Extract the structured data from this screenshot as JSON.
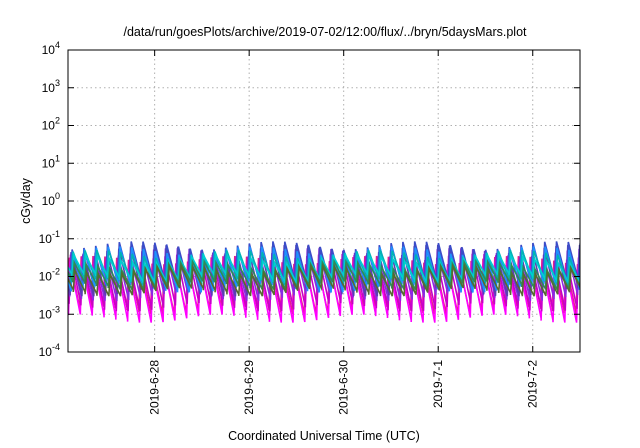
{
  "chart_data": {
    "type": "line",
    "title": "/data/run/goesPlots/archive/2019-07-02/12:00/flux/../bryn/5daysMars.plot",
    "xlabel": "Coordinated Universal Time (UTC)",
    "ylabel": "cGy/day",
    "x_range": [
      "2019-06-27T02:00:00",
      "2019-07-02T12:00:00"
    ],
    "x_ticks": [
      {
        "label": "2019-6-28",
        "t": "2019-06-28T00:00:00"
      },
      {
        "label": "2019-6-29",
        "t": "2019-06-29T00:00:00"
      },
      {
        "label": "2019-6-30",
        "t": "2019-06-30T00:00:00"
      },
      {
        "label": "2019-7-1",
        "t": "2019-07-01T00:00:00"
      },
      {
        "label": "2019-7-2",
        "t": "2019-07-02T00:00:00"
      }
    ],
    "y_scale": "log",
    "ylim": [
      0.0001,
      10000
    ],
    "y_ticks": [
      {
        "base": "10",
        "exp": "-4",
        "value": 0.0001
      },
      {
        "base": "10",
        "exp": "-3",
        "value": 0.001
      },
      {
        "base": "10",
        "exp": "-2",
        "value": 0.01
      },
      {
        "base": "10",
        "exp": "-1",
        "value": 0.1
      },
      {
        "base": "10",
        "exp": "0",
        "value": 1
      },
      {
        "base": "10",
        "exp": "1",
        "value": 10
      },
      {
        "base": "10",
        "exp": "2",
        "value": 100
      },
      {
        "base": "10",
        "exp": "3",
        "value": 1000
      },
      {
        "base": "10",
        "exp": "4",
        "value": 10000
      }
    ],
    "grid": true,
    "cycle_hours": 3,
    "series": [
      {
        "color": "#e61e8c",
        "peak": 0.028,
        "trough": 0.0013
      },
      {
        "color": "#ff00ff",
        "peak": 0.02,
        "trough": 0.0008
      },
      {
        "color": "#c800c8",
        "peak": 0.032,
        "trough": 0.0016
      },
      {
        "color": "#8a2be2",
        "peak": 0.045,
        "trough": 0.003
      },
      {
        "color": "#5a3fb0",
        "peak": 0.055,
        "trough": 0.004
      },
      {
        "color": "#3b4cc8",
        "peak": 0.068,
        "trough": 0.006
      },
      {
        "color": "#1e90ff",
        "peak": 0.05,
        "trough": 0.005
      },
      {
        "color": "#00b4b4",
        "peak": 0.04,
        "trough": 0.007
      },
      {
        "color": "#00ced1",
        "peak": 0.03,
        "trough": 0.009
      },
      {
        "color": "#2e8b57",
        "peak": 0.02,
        "trough": 0.006
      },
      {
        "color": "#556b2f",
        "peak": 0.015,
        "trough": 0.004
      }
    ]
  }
}
